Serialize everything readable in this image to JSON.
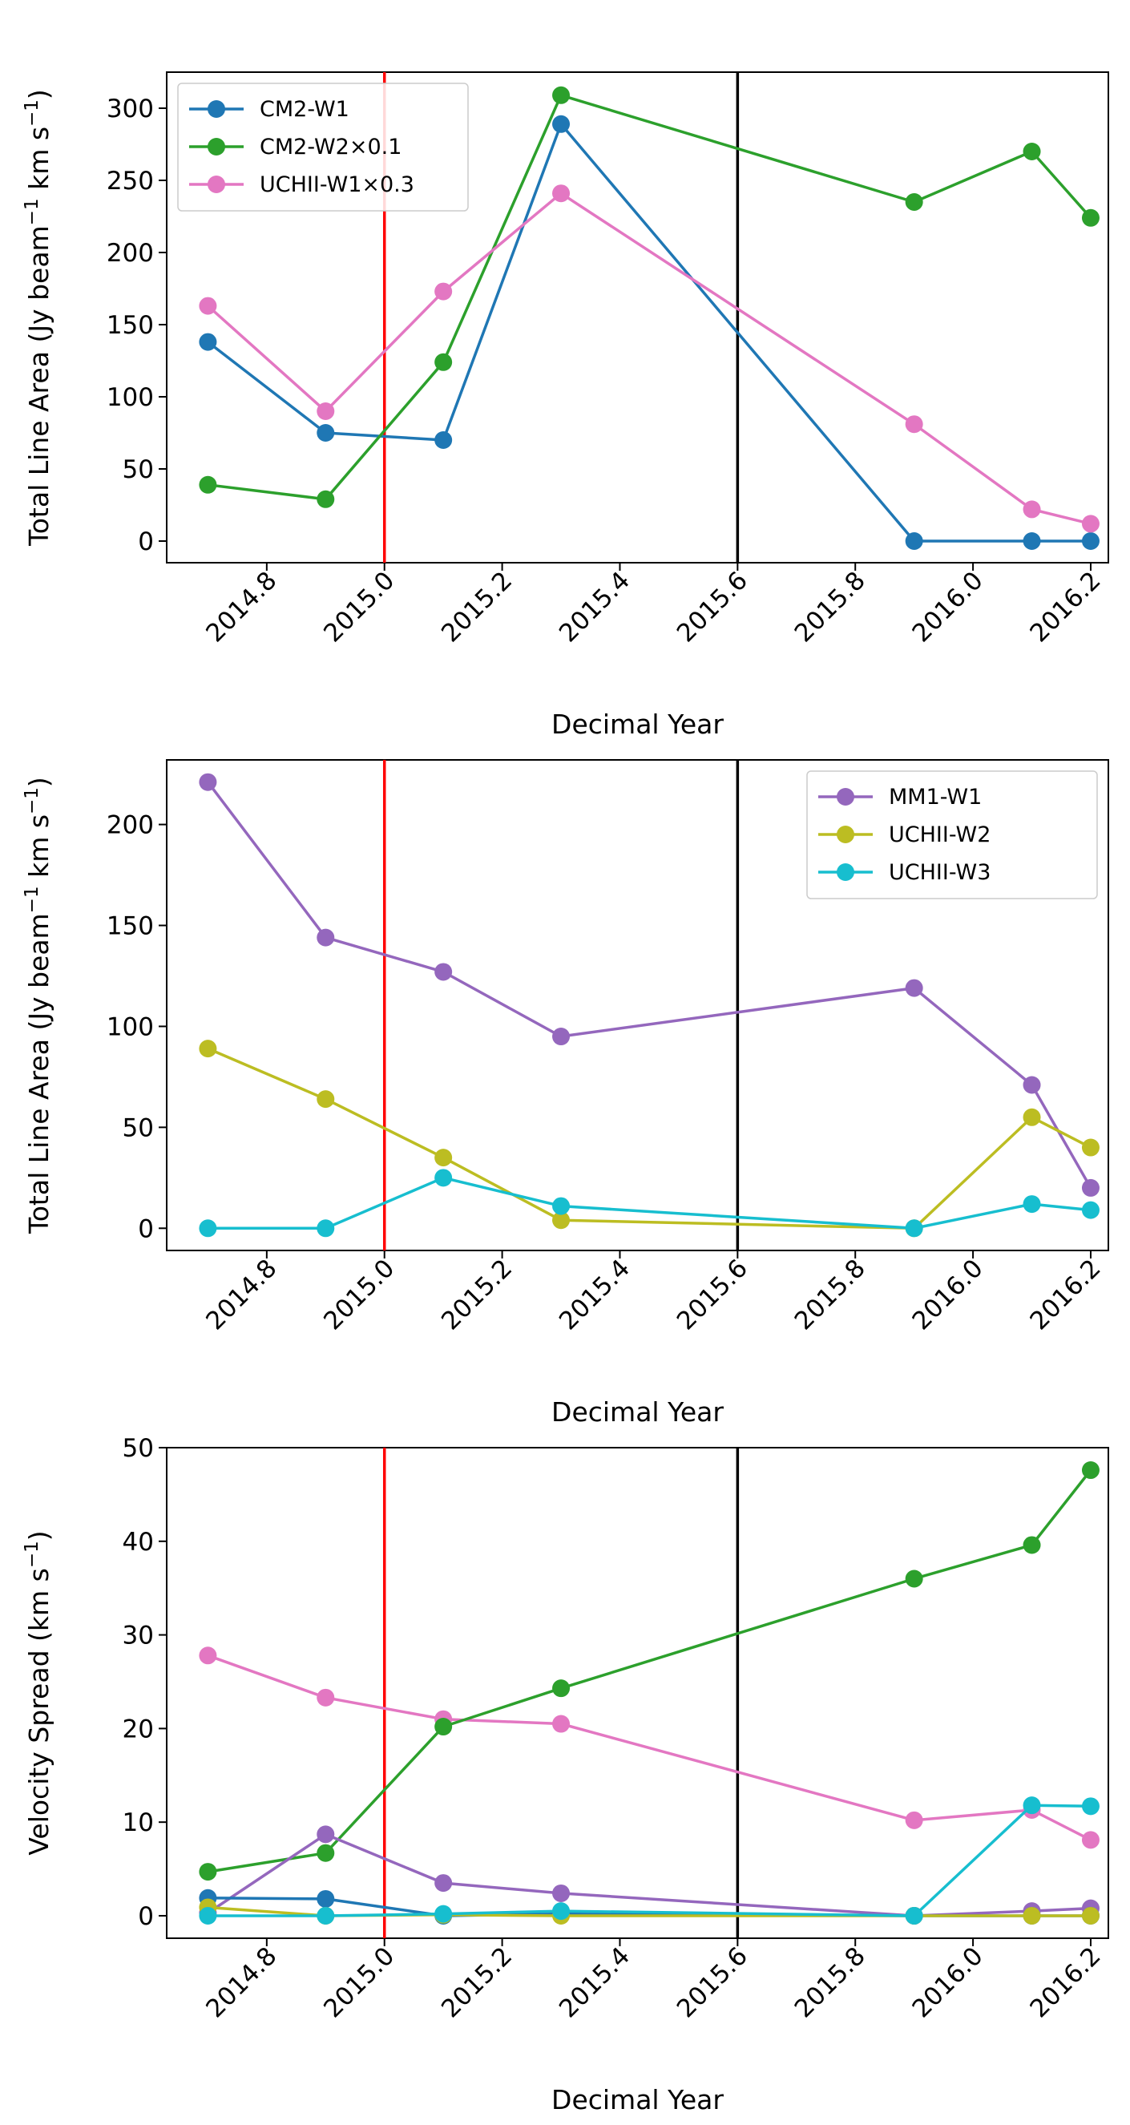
{
  "chart_data": [
    {
      "type": "line",
      "panel": "top",
      "xlabel": "Decimal Year",
      "ylabel": "Total Line Area (Jy beam⁻¹ km s⁻¹)",
      "xlim": [
        2014.63,
        2016.23
      ],
      "ylim": [
        -15,
        325
      ],
      "xticks": [
        2014.8,
        2015.0,
        2015.2,
        2015.4,
        2015.6,
        2015.8,
        2016.0,
        2016.2
      ],
      "xtick_labels": [
        "2014.8",
        "2015.0",
        "2015.2",
        "2015.4",
        "2015.6",
        "2015.8",
        "2016.0",
        "2016.2"
      ],
      "yticks": [
        0,
        50,
        100,
        150,
        200,
        250,
        300
      ],
      "ytick_labels": [
        "0",
        "50",
        "100",
        "150",
        "200",
        "250",
        "300"
      ],
      "vlines": [
        {
          "x": 2015.0,
          "color": "#ff0000"
        },
        {
          "x": 2015.6,
          "color": "#000000"
        }
      ],
      "legend": {
        "position": "top-left"
      },
      "grid": false,
      "x": [
        2014.7,
        2014.9,
        2015.1,
        2015.3,
        2015.9,
        2016.1,
        2016.2
      ],
      "series": [
        {
          "name": "CM2-W1",
          "color": "#1f77b4",
          "values": [
            138,
            75,
            70,
            289,
            0,
            0,
            0
          ]
        },
        {
          "name": "CM2-W2×0.1",
          "color": "#2ca02c",
          "values": [
            39,
            29,
            124,
            309,
            235,
            270,
            224
          ]
        },
        {
          "name": "UCHII-W1×0.3",
          "color": "#e377c2",
          "values": [
            163,
            90,
            173,
            241,
            81,
            22,
            12
          ]
        }
      ]
    },
    {
      "type": "line",
      "panel": "middle",
      "xlabel": "Decimal Year",
      "ylabel": "Total Line Area (Jy beam⁻¹ km s⁻¹)",
      "xlim": [
        2014.63,
        2016.23
      ],
      "ylim": [
        -11,
        232
      ],
      "xticks": [
        2014.8,
        2015.0,
        2015.2,
        2015.4,
        2015.6,
        2015.8,
        2016.0,
        2016.2
      ],
      "xtick_labels": [
        "2014.8",
        "2015.0",
        "2015.2",
        "2015.4",
        "2015.6",
        "2015.8",
        "2016.0",
        "2016.2"
      ],
      "yticks": [
        0,
        50,
        100,
        150,
        200
      ],
      "ytick_labels": [
        "0",
        "50",
        "100",
        "150",
        "200"
      ],
      "vlines": [
        {
          "x": 2015.0,
          "color": "#ff0000"
        },
        {
          "x": 2015.6,
          "color": "#000000"
        }
      ],
      "legend": {
        "position": "top-right"
      },
      "grid": false,
      "x": [
        2014.7,
        2014.9,
        2015.1,
        2015.3,
        2015.9,
        2016.1,
        2016.2
      ],
      "series": [
        {
          "name": "MM1-W1",
          "color": "#9467bd",
          "values": [
            221,
            144,
            127,
            95,
            119,
            71,
            20
          ]
        },
        {
          "name": "UCHII-W2",
          "color": "#bcbd22",
          "values": [
            89,
            64,
            35,
            4,
            0,
            55,
            40
          ]
        },
        {
          "name": "UCHII-W3",
          "color": "#17becf",
          "values": [
            0,
            0,
            25,
            11,
            0,
            12,
            9
          ]
        }
      ]
    },
    {
      "type": "line",
      "panel": "bottom",
      "xlabel": "Decimal Year",
      "ylabel": "Velocity Spread (km s⁻¹)",
      "xlim": [
        2014.63,
        2016.23
      ],
      "ylim": [
        -2.4,
        50
      ],
      "xticks": [
        2014.8,
        2015.0,
        2015.2,
        2015.4,
        2015.6,
        2015.8,
        2016.0,
        2016.2
      ],
      "xtick_labels": [
        "2014.8",
        "2015.0",
        "2015.2",
        "2015.4",
        "2015.6",
        "2015.8",
        "2016.0",
        "2016.2"
      ],
      "yticks": [
        0,
        10,
        20,
        30,
        40,
        50
      ],
      "ytick_labels": [
        "0",
        "10",
        "20",
        "30",
        "40",
        "50"
      ],
      "vlines": [
        {
          "x": 2015.0,
          "color": "#ff0000"
        },
        {
          "x": 2015.6,
          "color": "#000000"
        }
      ],
      "legend": null,
      "grid": false,
      "x": [
        2014.7,
        2014.9,
        2015.1,
        2015.3,
        2015.9,
        2016.1,
        2016.2
      ],
      "series": [
        {
          "color": "#e377c2",
          "values": [
            27.8,
            23.3,
            21.0,
            20.5,
            10.2,
            11.3,
            8.1
          ]
        },
        {
          "color": "#2ca02c",
          "values": [
            4.7,
            6.7,
            20.2,
            24.3,
            36.0,
            39.6,
            47.6
          ]
        },
        {
          "color": "#9467bd",
          "values": [
            0.3,
            8.7,
            3.5,
            2.4,
            0.0,
            0.5,
            0.8
          ]
        },
        {
          "color": "#1f77b4",
          "values": [
            1.9,
            1.8,
            0.0,
            0.2,
            0.0,
            0.0,
            0.0
          ]
        },
        {
          "color": "#bcbd22",
          "values": [
            0.9,
            0.0,
            0.1,
            0.0,
            0.0,
            0.0,
            0.0
          ]
        },
        {
          "color": "#17becf",
          "values": [
            0.0,
            0.0,
            0.2,
            0.5,
            0.0,
            11.8,
            11.7
          ]
        }
      ]
    }
  ]
}
